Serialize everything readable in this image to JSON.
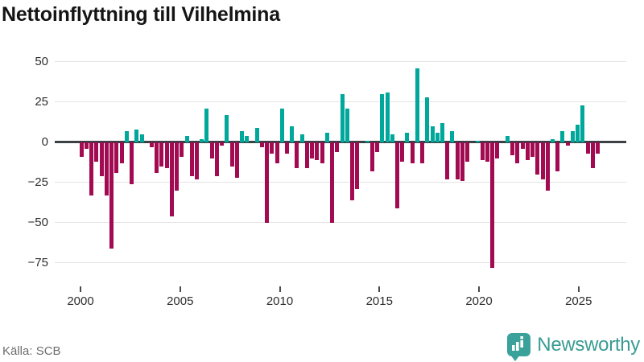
{
  "header": {
    "title": "Nettoinflyttning till Vilhelmina"
  },
  "footer": {
    "source_label": "Källa: SCB",
    "brand_name": "Newsworthy"
  },
  "axes": {
    "y_ticks": [
      {
        "label": "50",
        "value": 50
      },
      {
        "label": "25",
        "value": 25
      },
      {
        "label": "0",
        "value": 0
      },
      {
        "label": "−25",
        "value": -25
      },
      {
        "label": "−50",
        "value": -50
      },
      {
        "label": "−75",
        "value": -75
      }
    ],
    "x_ticks": [
      "2000",
      "2005",
      "2010",
      "2015",
      "2020",
      "2025"
    ]
  },
  "colors": {
    "positive_bar": "#00a79b",
    "negative_bar": "#a20a51",
    "zero_line": "#3b4045",
    "gridline": "#e4e4e4",
    "brand_teal": "#3aa29a"
  },
  "chart_data": {
    "type": "bar",
    "title": "Nettoinflyttning till Vilhelmina",
    "xlabel": "",
    "ylabel": "",
    "ylim": [
      -85,
      55
    ],
    "x_range": [
      "2000",
      "2026"
    ],
    "frequency": "quarterly",
    "start": "2000Q1",
    "end": "2025Q4",
    "legend": "none",
    "grid": "horizontal",
    "values": [
      -9,
      -4,
      -33,
      -12,
      -21,
      -33,
      -66,
      -19,
      -13,
      7,
      -26,
      8,
      5,
      0,
      -3,
      -19,
      -15,
      -16,
      -46,
      -30,
      -9,
      4,
      -21,
      -23,
      2,
      21,
      -10,
      -21,
      -2,
      17,
      -15,
      -22,
      7,
      4,
      0,
      9,
      -3,
      -50,
      -7,
      -13,
      21,
      -7,
      10,
      -16,
      5,
      -16,
      -10,
      -11,
      -13,
      6,
      -50,
      -6,
      30,
      21,
      -36,
      -29,
      0,
      1,
      -18,
      -6,
      30,
      31,
      5,
      -41,
      -12,
      6,
      -13,
      46,
      -13,
      28,
      10,
      6,
      12,
      -23,
      7,
      -23,
      -24,
      -12,
      0,
      1,
      -11,
      -12,
      -78,
      -10,
      0,
      4,
      -8,
      -13,
      -4,
      -11,
      -9,
      -20,
      -23,
      -30,
      2,
      -18,
      7,
      -2,
      7,
      11,
      23,
      -7,
      -16,
      -7
    ]
  }
}
